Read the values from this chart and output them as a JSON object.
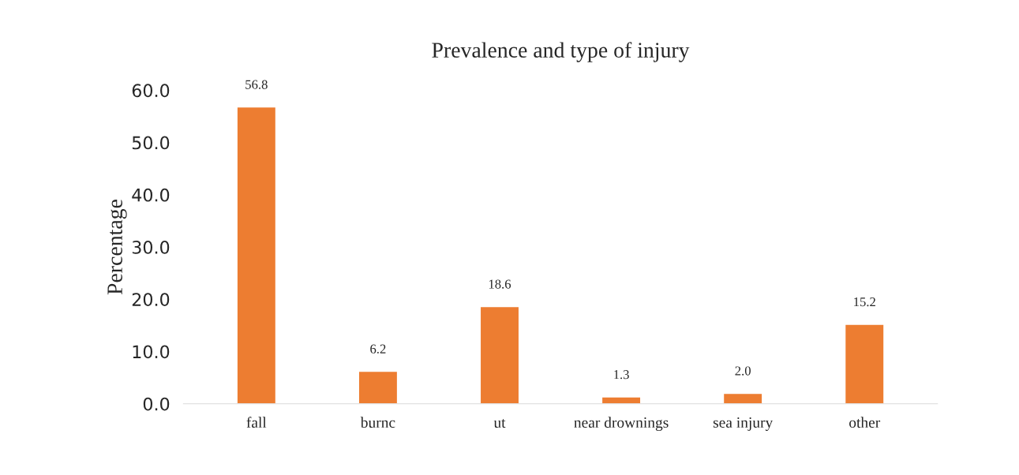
{
  "chart_data": {
    "type": "bar",
    "title": "Prevalence and type of injury",
    "ylabel": "Percentage",
    "categories": [
      "fall",
      "burnc",
      "ut",
      "near drownings",
      "sea injury",
      "other"
    ],
    "values": [
      56.8,
      6.2,
      18.6,
      1.3,
      2.0,
      15.2
    ],
    "value_labels": [
      "56.8",
      "6.2",
      "18.6",
      "1.3",
      "2.0",
      "15.2"
    ],
    "color": "#ed7d31",
    "ylim": [
      0,
      60
    ],
    "yticks": [
      {
        "value": 0,
        "label": "0.0"
      },
      {
        "value": 10,
        "label": "10.0"
      },
      {
        "value": 20,
        "label": "20.0"
      },
      {
        "value": 30,
        "label": "30.0"
      },
      {
        "value": 40,
        "label": "40.0"
      },
      {
        "value": 50,
        "label": "50.0"
      },
      {
        "value": 60,
        "label": "60.0"
      }
    ],
    "grid": false,
    "legend": false
  }
}
